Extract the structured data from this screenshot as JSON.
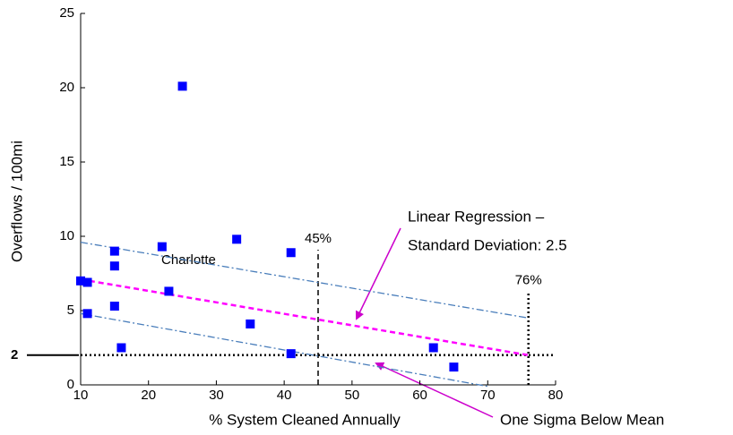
{
  "chart_data": {
    "type": "scatter",
    "xlabel": "% System Cleaned Annually",
    "ylabel": "Overflows / 100mi",
    "xlim": [
      10,
      80
    ],
    "xticks": [
      10,
      20,
      30,
      40,
      50,
      60,
      70,
      80
    ],
    "ylim": [
      0,
      25
    ],
    "yticks": [
      0,
      5,
      10,
      15,
      20,
      25
    ],
    "series": [
      {
        "color": "#0000ff",
        "x": [
          10,
          11,
          11,
          15,
          15,
          15,
          16,
          22,
          23,
          25,
          33,
          35,
          41,
          41,
          62,
          65
        ],
        "values": [
          7.0,
          6.9,
          4.8,
          9.0,
          8.0,
          5.3,
          2.5,
          9.3,
          6.3,
          20.1,
          9.8,
          4.1,
          8.9,
          2.1,
          2.5,
          1.2
        ]
      }
    ],
    "lines": [
      {
        "color": "#ff00ff",
        "style": "dashed",
        "x": [
          10,
          76
        ],
        "values": [
          7.1,
          2.0
        ]
      },
      {
        "color": "#4a7ebb",
        "style": "dashdot",
        "x": [
          10,
          76
        ],
        "values": [
          9.6,
          4.5
        ]
      },
      {
        "color": "#4a7ebb",
        "style": "dashdot",
        "x": [
          10,
          70
        ],
        "values": [
          4.8,
          -0.1
        ]
      }
    ],
    "vlines": [
      {
        "value": 45,
        "label": "45%",
        "top": 9.1,
        "style": "dashed"
      },
      {
        "value": 76,
        "label": "76%",
        "top": 6.3,
        "style": "dotted"
      }
    ],
    "hline": 2,
    "annotations": [
      "Charlotte",
      "Linear Regression –",
      "Standard Deviation: 2.5",
      "One Sigma Below Mean"
    ]
  }
}
